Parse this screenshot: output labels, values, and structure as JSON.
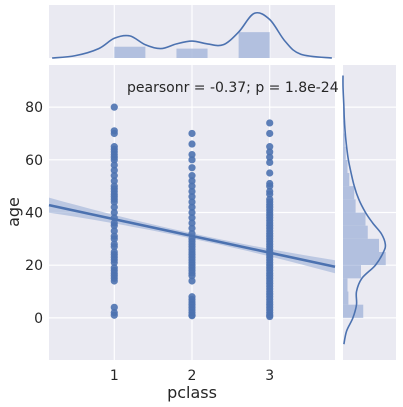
{
  "chart_data": {
    "type": "scatter",
    "annotation": "pearsonr = -0.37; p = 1.8e-24",
    "xlabel": "pclass",
    "ylabel": "age",
    "x_ticks": [
      1,
      2,
      3
    ],
    "y_ticks": [
      0,
      20,
      40,
      60,
      80
    ],
    "xlim": [
      0.16,
      3.84
    ],
    "ylim": [
      -16,
      96
    ],
    "grid": true,
    "colors": {
      "points": "#4c72b0",
      "line": "#4c72b0",
      "ci_band": "#a8b9dc",
      "hist_fill": "#a8b9dc",
      "plot_bg": "#eaeaf2",
      "grid": "#ffffff"
    },
    "regression": {
      "x": [
        0.16,
        3.84
      ],
      "y": [
        42.8,
        19.4
      ]
    },
    "scatter_points": [
      {
        "x": 1,
        "y": 80
      },
      {
        "x": 1,
        "y": 71
      },
      {
        "x": 1,
        "y": 70
      },
      {
        "x": 1,
        "y": 65
      },
      {
        "x": 1,
        "y": 64
      },
      {
        "x": 1,
        "y": 63
      },
      {
        "x": 1,
        "y": 62
      },
      {
        "x": 1,
        "y": 61
      },
      {
        "x": 1,
        "y": 60
      },
      {
        "x": 1,
        "y": 58
      },
      {
        "x": 1,
        "y": 56
      },
      {
        "x": 1,
        "y": 54
      },
      {
        "x": 1,
        "y": 52
      },
      {
        "x": 1,
        "y": 50
      },
      {
        "x": 1,
        "y": 49
      },
      {
        "x": 1,
        "y": 48
      },
      {
        "x": 1,
        "y": 47
      },
      {
        "x": 1,
        "y": 46
      },
      {
        "x": 1,
        "y": 45
      },
      {
        "x": 1,
        "y": 44
      },
      {
        "x": 1,
        "y": 42
      },
      {
        "x": 1,
        "y": 40
      },
      {
        "x": 1,
        "y": 38
      },
      {
        "x": 1,
        "y": 36
      },
      {
        "x": 1,
        "y": 35
      },
      {
        "x": 1,
        "y": 33
      },
      {
        "x": 1,
        "y": 31
      },
      {
        "x": 1,
        "y": 30
      },
      {
        "x": 1,
        "y": 28
      },
      {
        "x": 1,
        "y": 27
      },
      {
        "x": 1,
        "y": 25
      },
      {
        "x": 1,
        "y": 24
      },
      {
        "x": 1,
        "y": 23
      },
      {
        "x": 1,
        "y": 22
      },
      {
        "x": 1,
        "y": 21
      },
      {
        "x": 1,
        "y": 19
      },
      {
        "x": 1,
        "y": 18
      },
      {
        "x": 1,
        "y": 17
      },
      {
        "x": 1,
        "y": 16
      },
      {
        "x": 1,
        "y": 15
      },
      {
        "x": 1,
        "y": 14
      },
      {
        "x": 1,
        "y": 4
      },
      {
        "x": 1,
        "y": 2
      },
      {
        "x": 1,
        "y": 1
      },
      {
        "x": 2,
        "y": 70
      },
      {
        "x": 2,
        "y": 66
      },
      {
        "x": 2,
        "y": 62
      },
      {
        "x": 2,
        "y": 60
      },
      {
        "x": 2,
        "y": 57
      },
      {
        "x": 2,
        "y": 54
      },
      {
        "x": 2,
        "y": 52
      },
      {
        "x": 2,
        "y": 50
      },
      {
        "x": 2,
        "y": 48
      },
      {
        "x": 2,
        "y": 46
      },
      {
        "x": 2,
        "y": 44
      },
      {
        "x": 2,
        "y": 42
      },
      {
        "x": 2,
        "y": 40
      },
      {
        "x": 2,
        "y": 38
      },
      {
        "x": 2,
        "y": 36
      },
      {
        "x": 2,
        "y": 34
      },
      {
        "x": 2,
        "y": 32
      },
      {
        "x": 2,
        "y": 30
      },
      {
        "x": 2,
        "y": 29
      },
      {
        "x": 2,
        "y": 28
      },
      {
        "x": 2,
        "y": 27
      },
      {
        "x": 2,
        "y": 26
      },
      {
        "x": 2,
        "y": 25
      },
      {
        "x": 2,
        "y": 24
      },
      {
        "x": 2,
        "y": 23
      },
      {
        "x": 2,
        "y": 22
      },
      {
        "x": 2,
        "y": 21
      },
      {
        "x": 2,
        "y": 20
      },
      {
        "x": 2,
        "y": 19
      },
      {
        "x": 2,
        "y": 18
      },
      {
        "x": 2,
        "y": 17
      },
      {
        "x": 2,
        "y": 16
      },
      {
        "x": 2,
        "y": 14
      },
      {
        "x": 2,
        "y": 8
      },
      {
        "x": 2,
        "y": 7
      },
      {
        "x": 2,
        "y": 6
      },
      {
        "x": 2,
        "y": 5
      },
      {
        "x": 2,
        "y": 4
      },
      {
        "x": 2,
        "y": 3
      },
      {
        "x": 2,
        "y": 2
      },
      {
        "x": 2,
        "y": 1
      },
      {
        "x": 2,
        "y": 0.8
      },
      {
        "x": 3,
        "y": 74
      },
      {
        "x": 3,
        "y": 70
      },
      {
        "x": 3,
        "y": 65
      },
      {
        "x": 3,
        "y": 63
      },
      {
        "x": 3,
        "y": 61
      },
      {
        "x": 3,
        "y": 59
      },
      {
        "x": 3,
        "y": 55
      },
      {
        "x": 3,
        "y": 51
      },
      {
        "x": 3,
        "y": 50
      },
      {
        "x": 3,
        "y": 48
      },
      {
        "x": 3,
        "y": 47
      },
      {
        "x": 3,
        "y": 45
      },
      {
        "x": 3,
        "y": 44
      },
      {
        "x": 3,
        "y": 43
      },
      {
        "x": 3,
        "y": 42
      },
      {
        "x": 3,
        "y": 41
      },
      {
        "x": 3,
        "y": 40
      },
      {
        "x": 3,
        "y": 39
      },
      {
        "x": 3,
        "y": 38
      },
      {
        "x": 3,
        "y": 37
      },
      {
        "x": 3,
        "y": 36
      },
      {
        "x": 3,
        "y": 35
      },
      {
        "x": 3,
        "y": 34
      },
      {
        "x": 3,
        "y": 33
      },
      {
        "x": 3,
        "y": 32
      },
      {
        "x": 3,
        "y": 31
      },
      {
        "x": 3,
        "y": 30
      },
      {
        "x": 3,
        "y": 29
      },
      {
        "x": 3,
        "y": 28
      },
      {
        "x": 3,
        "y": 27
      },
      {
        "x": 3,
        "y": 26
      },
      {
        "x": 3,
        "y": 25
      },
      {
        "x": 3,
        "y": 24
      },
      {
        "x": 3,
        "y": 23
      },
      {
        "x": 3,
        "y": 22
      },
      {
        "x": 3,
        "y": 21
      },
      {
        "x": 3,
        "y": 20
      },
      {
        "x": 3,
        "y": 19
      },
      {
        "x": 3,
        "y": 18
      },
      {
        "x": 3,
        "y": 17
      },
      {
        "x": 3,
        "y": 16
      },
      {
        "x": 3,
        "y": 15
      },
      {
        "x": 3,
        "y": 14
      },
      {
        "x": 3,
        "y": 13
      },
      {
        "x": 3,
        "y": 12
      },
      {
        "x": 3,
        "y": 11
      },
      {
        "x": 3,
        "y": 10
      },
      {
        "x": 3,
        "y": 9
      },
      {
        "x": 3,
        "y": 8
      },
      {
        "x": 3,
        "y": 7
      },
      {
        "x": 3,
        "y": 6
      },
      {
        "x": 3,
        "y": 5
      },
      {
        "x": 3,
        "y": 4
      },
      {
        "x": 3,
        "y": 3
      },
      {
        "x": 3,
        "y": 2
      },
      {
        "x": 3,
        "y": 1
      },
      {
        "x": 3,
        "y": 0.5
      }
    ],
    "x_marginal_hist": {
      "bins": [
        [
          1.0,
          1.4
        ],
        [
          1.8,
          2.2
        ],
        [
          2.6,
          3.0
        ]
      ],
      "density": [
        0.24,
        0.2,
        0.55
      ]
    },
    "x_marginal_kde": {
      "x": [
        0.2,
        0.5,
        0.8,
        1.0,
        1.2,
        1.4,
        1.6,
        1.8,
        2.0,
        2.2,
        2.4,
        2.6,
        2.8,
        3.0,
        3.2,
        3.4,
        3.8
      ],
      "density": [
        0.0,
        0.05,
        0.2,
        0.42,
        0.47,
        0.28,
        0.2,
        0.3,
        0.36,
        0.3,
        0.28,
        0.55,
        0.95,
        0.82,
        0.35,
        0.08,
        0.0
      ]
    },
    "y_marginal_hist": {
      "bins": [
        [
          0,
          5
        ],
        [
          5,
          10
        ],
        [
          10,
          15
        ],
        [
          15,
          20
        ],
        [
          20,
          25
        ],
        [
          25,
          30
        ],
        [
          30,
          35
        ],
        [
          35,
          40
        ],
        [
          40,
          45
        ],
        [
          45,
          50
        ],
        [
          50,
          55
        ],
        [
          55,
          60
        ],
        [
          60,
          65
        ],
        [
          65,
          70
        ],
        [
          70,
          75
        ],
        [
          75,
          80
        ]
      ],
      "density": [
        0.45,
        0.12,
        0.1,
        0.4,
        0.95,
        0.8,
        0.55,
        0.5,
        0.28,
        0.25,
        0.14,
        0.1,
        0.06,
        0.04,
        0.02,
        0.01
      ]
    },
    "y_marginal_kde": {
      "y": [
        -10,
        -5,
        0,
        5,
        10,
        15,
        20,
        25,
        28,
        32,
        36,
        40,
        45,
        50,
        55,
        60,
        65,
        70,
        75,
        80,
        88,
        92
      ],
      "density": [
        0.02,
        0.08,
        0.22,
        0.3,
        0.3,
        0.42,
        0.72,
        0.9,
        0.94,
        0.85,
        0.66,
        0.5,
        0.35,
        0.25,
        0.18,
        0.12,
        0.08,
        0.05,
        0.03,
        0.02,
        0.0,
        0.0
      ]
    }
  }
}
